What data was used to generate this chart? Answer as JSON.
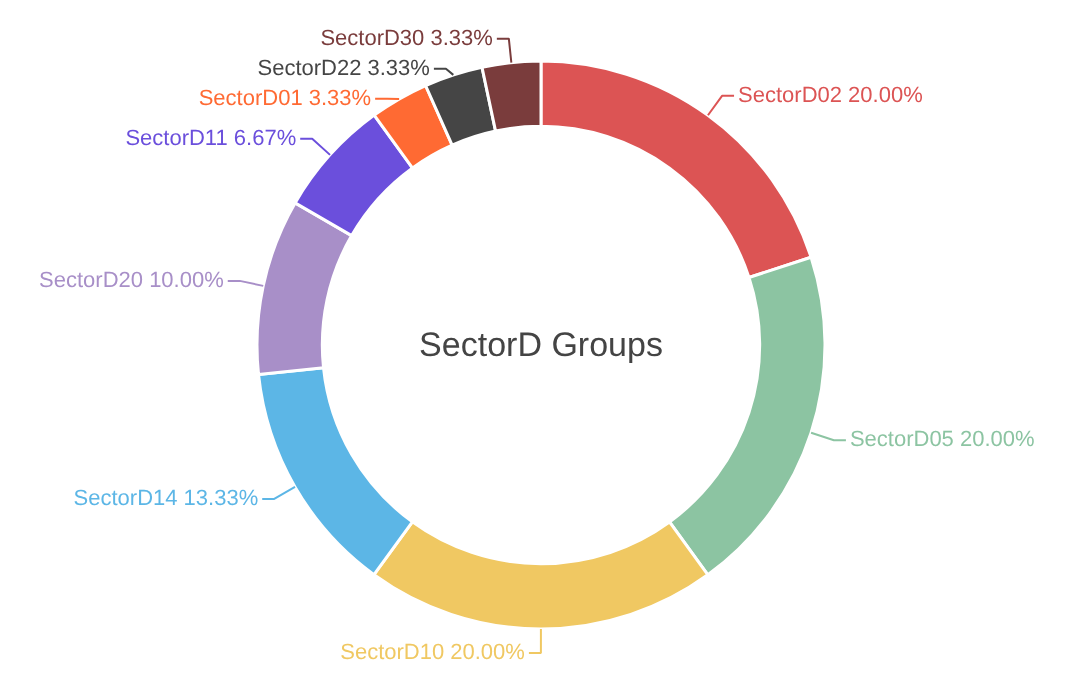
{
  "chart_data": {
    "type": "donut",
    "title": "SectorD Groups",
    "categories": [
      "SectorD02",
      "SectorD05",
      "SectorD10",
      "SectorD14",
      "SectorD20",
      "SectorD11",
      "SectorD01",
      "SectorD22",
      "SectorD30"
    ],
    "values": [
      20.0,
      20.0,
      20.0,
      13.33,
      10.0,
      6.67,
      3.33,
      3.33,
      3.33
    ],
    "value_labels": [
      "20.00%",
      "20.00%",
      "20.00%",
      "13.33%",
      "10.00%",
      "6.67%",
      "3.33%",
      "3.33%",
      "3.33%"
    ],
    "colors": [
      "#dc5454",
      "#8cc4a2",
      "#f0c862",
      "#5cb6e6",
      "#a88fc8",
      "#6b4fdc",
      "#ff6a33",
      "#454545",
      "#7a3c3c"
    ]
  }
}
